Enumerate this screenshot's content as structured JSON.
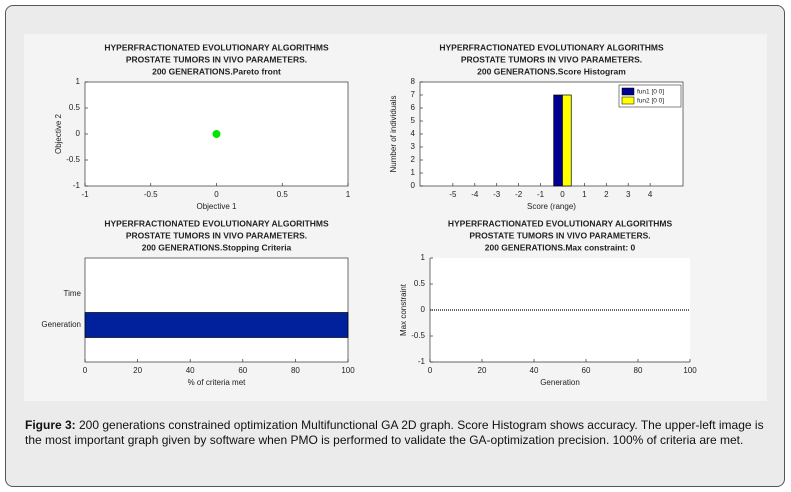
{
  "chart_data": [
    {
      "type": "scatter",
      "title": [
        "HYPERFRACTIONATED EVOLUTIONARY ALGORITHMS",
        "PROSTATE TUMORS IN VIVO PARAMETERS.",
        "200 GENERATIONS.Pareto front"
      ],
      "xlabel": "Objective 1",
      "ylabel": "Objective 2",
      "series": [
        {
          "color": "#00e600",
          "x": [
            0
          ],
          "values": [
            0
          ]
        }
      ],
      "xlim": [
        -1,
        1
      ],
      "xticks": [
        -1,
        -0.5,
        0,
        0.5,
        1
      ],
      "ylim": [
        -1,
        1
      ],
      "yticks": [
        -1,
        -0.5,
        0,
        0.5,
        1
      ]
    },
    {
      "type": "bar",
      "title": [
        "HYPERFRACTIONATED EVOLUTIONARY ALGORITHMS",
        "PROSTATE TUMORS IN VIVO PARAMETERS.",
        "200 GENERATIONS.Score Histogram"
      ],
      "xlabel": "Score (range)",
      "ylabel": "Number of individuals",
      "x": [
        0
      ],
      "series": [
        {
          "name": "fun1 [0 0]",
          "color": "#00008f",
          "values": [
            7
          ]
        },
        {
          "name": "fun2 [0 0]",
          "color": "#ffff00",
          "values": [
            7
          ]
        }
      ],
      "xlim": [
        -6.5,
        5.5
      ],
      "xticks": [
        -5,
        -4,
        -3,
        -2,
        -1,
        0,
        1,
        2,
        3,
        4
      ],
      "ylim": [
        0,
        8
      ],
      "yticks": [
        0,
        1,
        2,
        3,
        4,
        5,
        6,
        7,
        8
      ],
      "legend": "northeast"
    },
    {
      "type": "barh",
      "title": [
        "HYPERFRACTIONATED EVOLUTIONARY ALGORITHMS",
        "PROSTATE TUMORS IN VIVO PARAMETERS.",
        "200 GENERATIONS.Stopping Criteria"
      ],
      "xlabel": "% of criteria met",
      "categories": [
        "Generation",
        "Time"
      ],
      "values": [
        100,
        0
      ],
      "color": "#00209c",
      "xlim": [
        0,
        100
      ],
      "xticks": [
        0,
        20,
        40,
        60,
        80,
        100
      ]
    },
    {
      "type": "line",
      "title": [
        "HYPERFRACTIONATED EVOLUTIONARY ALGORITHMS",
        "PROSTATE TUMORS IN VIVO PARAMETERS.",
        "200 GENERATIONS.Max constraint: 0"
      ],
      "xlabel": "Generation",
      "ylabel": "Max constraint",
      "x": [
        0,
        2,
        4,
        6,
        8,
        10,
        12,
        14,
        16,
        18,
        20,
        22,
        24,
        26,
        28,
        30,
        32,
        34,
        36,
        38,
        40,
        42,
        44,
        46,
        48,
        50,
        52,
        54,
        56,
        58,
        60,
        62,
        64,
        66,
        68,
        70,
        72,
        74,
        76,
        78,
        80,
        82,
        84,
        86,
        88,
        90,
        92,
        94,
        96,
        98,
        100
      ],
      "series": [
        {
          "color": "#333333",
          "values": [
            0,
            0,
            0,
            0,
            0,
            0,
            0,
            0,
            0,
            0,
            0,
            0,
            0,
            0,
            0,
            0,
            0,
            0,
            0,
            0,
            0,
            0,
            0,
            0,
            0,
            0,
            0,
            0,
            0,
            0,
            0,
            0,
            0,
            0,
            0,
            0,
            0,
            0,
            0,
            0,
            0,
            0,
            0,
            0,
            0,
            0,
            0,
            0,
            0,
            0,
            0
          ]
        }
      ],
      "xlim": [
        0,
        100
      ],
      "xticks": [
        0,
        20,
        40,
        60,
        80,
        100
      ],
      "ylim": [
        -1,
        1
      ],
      "yticks": [
        -1,
        -0.5,
        0,
        0.5,
        1
      ]
    }
  ],
  "caption": {
    "label": "Figure 3:",
    "text": " 200 generations constrained optimization Multifunctional GA 2D graph. Score Histogram shows accuracy. The upper-left image is the most important graph given by software when PMO is performed to validate the GA-optimization precision. 100% of criteria are met."
  }
}
